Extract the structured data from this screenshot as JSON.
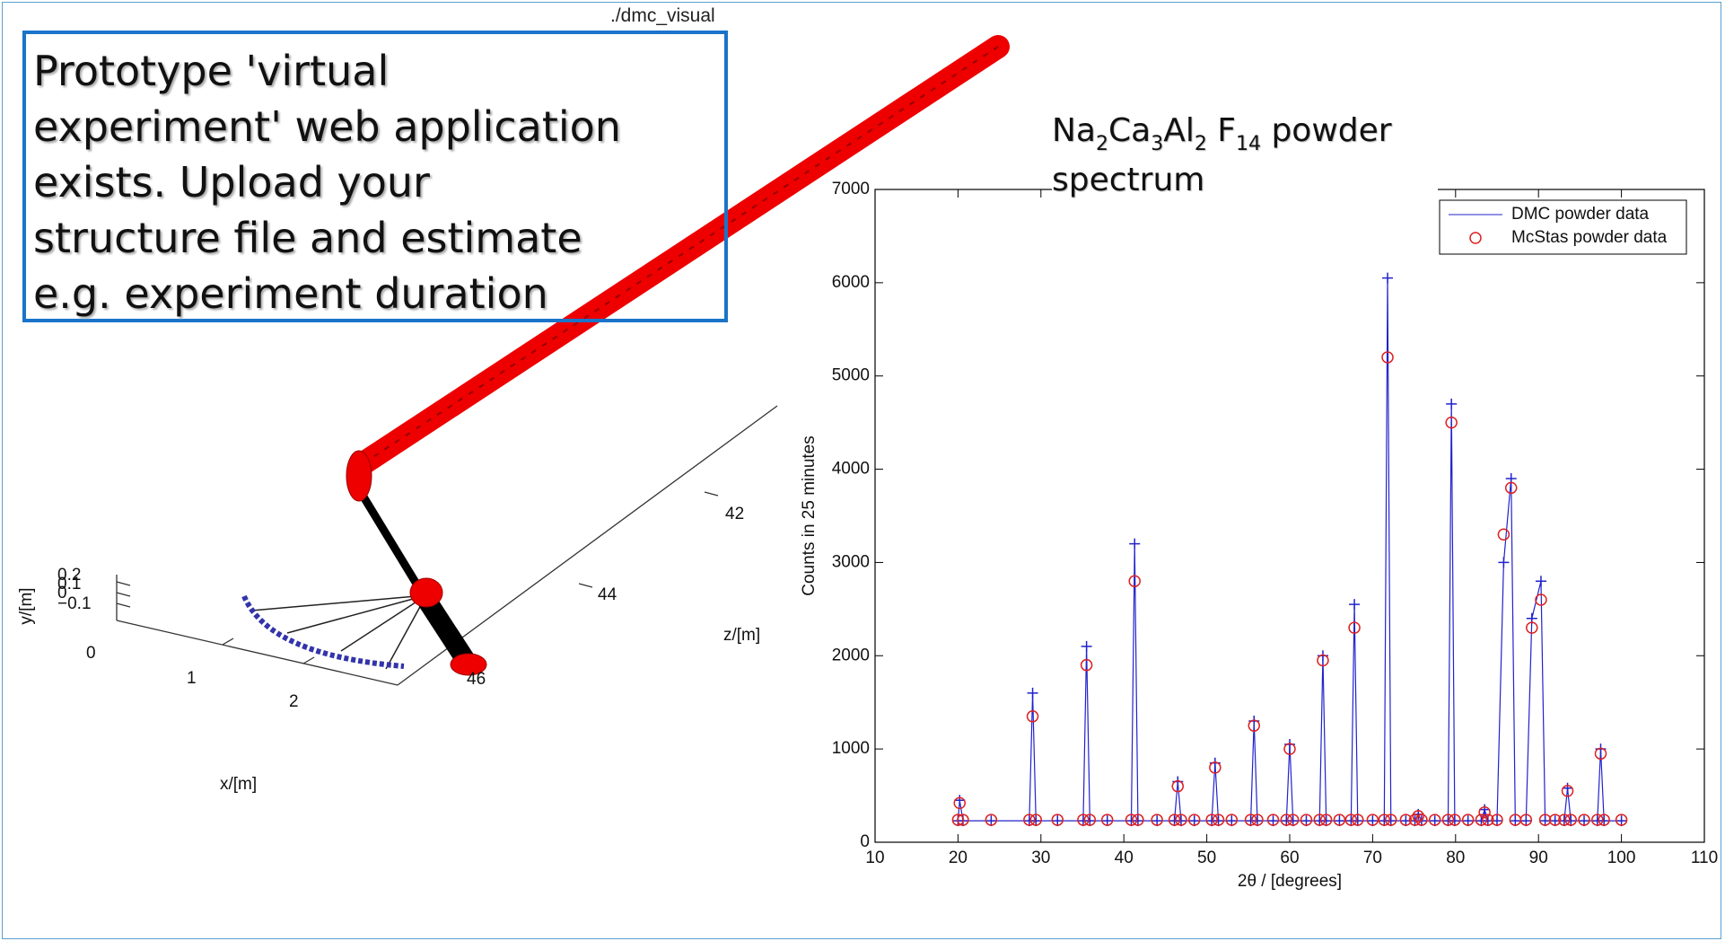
{
  "window_title": "./dmc_visual",
  "callout": {
    "lines": [
      "Prototype 'virtual",
      "experiment' web application",
      "exists. Upload your",
      "structure file  and estimate",
      "e.g. experiment duration"
    ]
  },
  "instrument_view": {
    "x_label": "x/[m]",
    "y_label": "y/[m]",
    "z_label": "z/[m]",
    "x_ticks": [
      "0",
      "1",
      "2"
    ],
    "y_ticks": [
      "0.2",
      "0.1",
      "0",
      "−0.1"
    ],
    "z_ticks": [
      "42",
      "44",
      "46"
    ]
  },
  "chart_data": {
    "type": "line",
    "title": {
      "segments": [
        {
          "text": "Na",
          "sub": false
        },
        {
          "text": "2",
          "sub": true
        },
        {
          "text": "Ca",
          "sub": false
        },
        {
          "text": "3",
          "sub": true
        },
        {
          "text": "Al",
          "sub": false
        },
        {
          "text": "2",
          "sub": true
        },
        {
          "text": " F",
          "sub": false
        },
        {
          "text": "14",
          "sub": true
        },
        {
          "text": " powder spectrum",
          "sub": false
        }
      ]
    },
    "x_label": "2θ / [degrees]",
    "y_label": "Counts in 25 minutes",
    "xlim": [
      10,
      110
    ],
    "xticks": [
      10,
      20,
      30,
      40,
      50,
      60,
      70,
      80,
      90,
      100,
      110
    ],
    "ylim": [
      0,
      7000
    ],
    "yticks": [
      0,
      1000,
      2000,
      3000,
      4000,
      5000,
      6000,
      7000
    ],
    "legend": "upper right",
    "x": [
      20,
      20.2,
      20.6,
      24,
      28.6,
      29,
      29.4,
      32,
      35.1,
      35.5,
      35.9,
      38,
      40.9,
      41.3,
      41.7,
      44,
      46.1,
      46.5,
      46.9,
      48.5,
      50.6,
      51,
      51.4,
      53,
      55.3,
      55.7,
      56.1,
      58,
      59.6,
      60,
      60.4,
      62,
      63.6,
      64,
      64.4,
      66,
      67.4,
      67.8,
      68.2,
      70,
      71.4,
      71.8,
      72.2,
      74,
      75.1,
      75.5,
      75.9,
      77.5,
      79.1,
      79.5,
      79.9,
      81.5,
      83.1,
      83.5,
      83.9,
      85,
      85.8,
      86.7,
      87.2,
      88.5,
      89.2,
      90.3,
      90.8,
      92,
      93.1,
      93.5,
      93.9,
      95.5,
      97.1,
      97.5,
      97.9,
      100
    ],
    "series": [
      {
        "name": "DMC powder data",
        "color": "#2222cc",
        "marker": "plus",
        "line": true,
        "values": [
          230,
          450,
          230,
          230,
          230,
          1600,
          230,
          230,
          230,
          2100,
          230,
          230,
          230,
          3200,
          230,
          230,
          230,
          650,
          230,
          230,
          230,
          850,
          230,
          230,
          230,
          1300,
          230,
          230,
          230,
          1050,
          230,
          230,
          230,
          2000,
          230,
          230,
          230,
          2550,
          230,
          230,
          230,
          6050,
          230,
          230,
          230,
          300,
          230,
          230,
          230,
          4700,
          230,
          230,
          230,
          350,
          230,
          230,
          3000,
          3900,
          230,
          230,
          2400,
          2800,
          230,
          230,
          230,
          580,
          230,
          230,
          230,
          1000,
          230,
          230
        ]
      },
      {
        "name": "McStas powder data",
        "color": "#dd2222",
        "marker": "circle",
        "line": false,
        "values": [
          240,
          420,
          240,
          240,
          240,
          1350,
          240,
          240,
          240,
          1900,
          240,
          240,
          240,
          2800,
          240,
          240,
          240,
          600,
          240,
          240,
          240,
          800,
          240,
          240,
          240,
          1250,
          240,
          240,
          240,
          1000,
          240,
          240,
          240,
          1950,
          240,
          240,
          240,
          2300,
          240,
          240,
          240,
          5200,
          240,
          240,
          240,
          280,
          240,
          240,
          240,
          4500,
          240,
          240,
          240,
          320,
          240,
          240,
          3300,
          3800,
          240,
          240,
          2300,
          2600,
          240,
          240,
          240,
          550,
          240,
          240,
          240,
          950,
          240,
          240
        ]
      }
    ]
  }
}
